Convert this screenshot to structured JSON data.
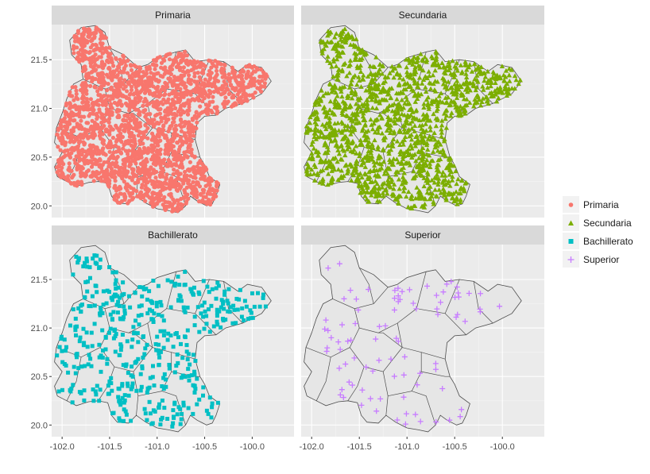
{
  "chart_data": {
    "type": "scatter",
    "facets": [
      {
        "name": "Primaria",
        "shape": "circle",
        "color": "#F8766D",
        "n": 2400
      },
      {
        "name": "Secundaria",
        "shape": "triangle",
        "color": "#7CAE00",
        "n": 1500
      },
      {
        "name": "Bachillerato",
        "shape": "square",
        "color": "#00BFC4",
        "n": 480
      },
      {
        "name": "Superior",
        "shape": "plus",
        "color": "#C77CFF",
        "n": 90
      }
    ],
    "x_ticks": [
      "-102.0",
      "-101.5",
      "-101.0",
      "-100.5",
      "-100.0"
    ],
    "y_ticks": [
      "20.0",
      "20.5",
      "21.0",
      "21.5"
    ],
    "xlim": [
      -102.11,
      -99.56
    ],
    "ylim": [
      19.88,
      21.86
    ],
    "grid": true,
    "legend_position": "right",
    "legend": [
      {
        "label": "Primaria",
        "shape": "circle",
        "color": "#F8766D"
      },
      {
        "label": "Secundaria",
        "shape": "triangle",
        "color": "#7CAE00"
      },
      {
        "label": "Bachillerato",
        "shape": "square",
        "color": "#00BFC4"
      },
      {
        "label": "Superior",
        "shape": "plus",
        "color": "#C77CFF"
      }
    ],
    "map_outline": [
      [
        -102.0,
        20.55
      ],
      [
        -102.08,
        20.4
      ],
      [
        -102.05,
        20.3
      ],
      [
        -101.95,
        20.25
      ],
      [
        -101.85,
        20.2
      ],
      [
        -101.72,
        20.24
      ],
      [
        -101.62,
        20.25
      ],
      [
        -101.52,
        20.23
      ],
      [
        -101.48,
        20.1
      ],
      [
        -101.42,
        20.03
      ],
      [
        -101.3,
        20.02
      ],
      [
        -101.22,
        20.1
      ],
      [
        -101.12,
        20.03
      ],
      [
        -101.0,
        19.97
      ],
      [
        -100.88,
        19.95
      ],
      [
        -100.78,
        19.93
      ],
      [
        -100.7,
        20.0
      ],
      [
        -100.65,
        20.1
      ],
      [
        -100.58,
        20.05
      ],
      [
        -100.48,
        20.0
      ],
      [
        -100.42,
        20.02
      ],
      [
        -100.38,
        20.1
      ],
      [
        -100.34,
        20.22
      ],
      [
        -100.45,
        20.3
      ],
      [
        -100.5,
        20.42
      ],
      [
        -100.55,
        20.5
      ],
      [
        -100.6,
        20.68
      ],
      [
        -100.58,
        20.85
      ],
      [
        -100.5,
        20.92
      ],
      [
        -100.38,
        20.93
      ],
      [
        -100.28,
        21.0
      ],
      [
        -100.1,
        21.05
      ],
      [
        -100.0,
        21.1
      ],
      [
        -99.9,
        21.15
      ],
      [
        -99.8,
        21.28
      ],
      [
        -99.9,
        21.42
      ],
      [
        -100.05,
        21.45
      ],
      [
        -100.15,
        21.38
      ],
      [
        -100.3,
        21.48
      ],
      [
        -100.45,
        21.5
      ],
      [
        -100.6,
        21.48
      ],
      [
        -100.7,
        21.6
      ],
      [
        -100.8,
        21.58
      ],
      [
        -101.0,
        21.52
      ],
      [
        -101.1,
        21.45
      ],
      [
        -101.2,
        21.42
      ],
      [
        -101.35,
        21.55
      ],
      [
        -101.5,
        21.62
      ],
      [
        -101.55,
        21.78
      ],
      [
        -101.65,
        21.85
      ],
      [
        -101.8,
        21.83
      ],
      [
        -101.92,
        21.7
      ],
      [
        -101.9,
        21.55
      ],
      [
        -101.8,
        21.45
      ],
      [
        -101.78,
        21.3
      ],
      [
        -101.88,
        21.25
      ],
      [
        -101.95,
        21.1
      ],
      [
        -102.0,
        20.95
      ],
      [
        -102.06,
        20.8
      ],
      [
        -102.08,
        20.65
      ]
    ]
  }
}
